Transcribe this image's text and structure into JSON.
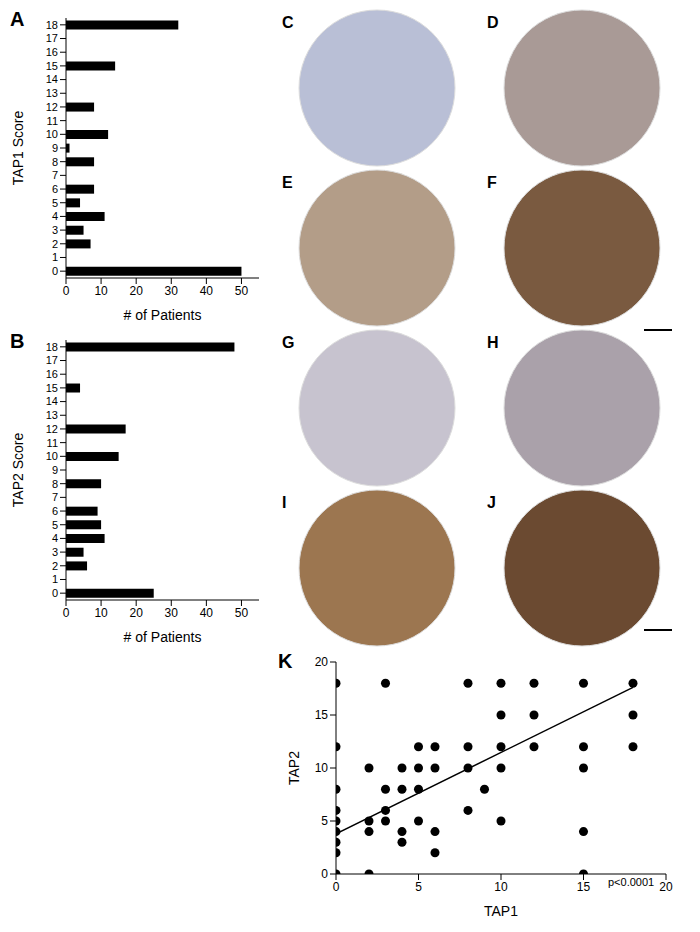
{
  "chart_data": [
    {
      "panel": "A",
      "type": "bar",
      "orientation": "horizontal",
      "ylabel": "TAP1 Score",
      "xlabel": "# of Patients",
      "categories": [
        0,
        1,
        2,
        3,
        4,
        5,
        6,
        7,
        8,
        9,
        10,
        11,
        12,
        13,
        14,
        15,
        16,
        17,
        18
      ],
      "values": [
        50,
        0,
        7,
        5,
        11,
        4,
        8,
        0,
        8,
        1,
        12,
        0,
        8,
        0,
        0,
        14,
        0,
        0,
        32
      ],
      "color": "#000000",
      "xlim": [
        0,
        55
      ],
      "xticks": [
        0,
        10,
        20,
        30,
        40,
        50
      ]
    },
    {
      "panel": "B",
      "type": "bar",
      "orientation": "horizontal",
      "ylabel": "TAP2 Score",
      "xlabel": "# of Patients",
      "categories": [
        0,
        1,
        2,
        3,
        4,
        5,
        6,
        7,
        8,
        9,
        10,
        11,
        12,
        13,
        14,
        15,
        16,
        17,
        18
      ],
      "values": [
        25,
        0,
        6,
        5,
        11,
        10,
        9,
        0,
        10,
        0,
        15,
        0,
        17,
        0,
        0,
        4,
        0,
        0,
        48
      ],
      "color": "#000000",
      "xlim": [
        0,
        55
      ],
      "xticks": [
        0,
        10,
        20,
        30,
        40,
        50
      ]
    },
    {
      "panel": "K",
      "type": "scatter",
      "xlabel": "TAP1",
      "ylabel": "TAP2",
      "color": "#000000",
      "x": [
        0,
        0,
        0,
        0,
        0,
        0,
        0,
        0,
        0,
        2,
        2,
        2,
        2,
        3,
        3,
        3,
        3,
        4,
        4,
        4,
        4,
        5,
        5,
        5,
        5,
        6,
        6,
        6,
        6,
        8,
        8,
        8,
        8,
        9,
        10,
        10,
        10,
        10,
        10,
        12,
        12,
        12,
        15,
        15,
        15,
        15,
        15,
        18,
        18,
        18
      ],
      "y": [
        0,
        2,
        3,
        4,
        5,
        6,
        8,
        12,
        18,
        0,
        4,
        5,
        10,
        5,
        6,
        8,
        18,
        3,
        4,
        8,
        10,
        5,
        8,
        10,
        12,
        2,
        4,
        10,
        12,
        6,
        10,
        12,
        18,
        8,
        5,
        10,
        12,
        15,
        18,
        12,
        15,
        18,
        0,
        4,
        10,
        12,
        18,
        12,
        15,
        18
      ],
      "fit_line": {
        "x": [
          0,
          18
        ],
        "y": [
          3.8,
          17.6
        ]
      },
      "annotation": "p<0.0001",
      "xlim": [
        0,
        20
      ],
      "xticks": [
        0,
        5,
        10,
        15,
        20
      ],
      "ylim": [
        0,
        20
      ],
      "yticks": [
        0,
        5,
        10,
        15,
        20
      ]
    }
  ],
  "image_panels": [
    "C",
    "D",
    "E",
    "F",
    "G",
    "H",
    "I",
    "J"
  ]
}
